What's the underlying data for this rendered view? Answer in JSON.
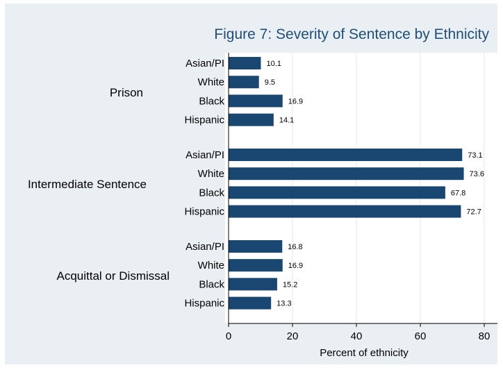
{
  "chart_data": {
    "type": "bar",
    "orientation": "horizontal",
    "title": "Figure 7: Severity of Sentence by Ethnicity",
    "xlabel": "Percent of ethnicity",
    "ylabel": "",
    "xlim": [
      0,
      80
    ],
    "xticks": [
      "0",
      "20",
      "40",
      "60",
      "80"
    ],
    "grid": true,
    "legend": "none",
    "bar_color": "#1a4772",
    "groups": [
      {
        "name": "Prison",
        "categories": [
          "Asian/PI",
          "White",
          "Black",
          "Hispanic"
        ],
        "values": [
          10.1,
          9.5,
          16.9,
          14.1
        ],
        "labels": [
          "10.1",
          "9.5",
          "16.9",
          "14.1"
        ]
      },
      {
        "name": "Intermediate Sentence",
        "categories": [
          "Asian/PI",
          "White",
          "Black",
          "Hispanic"
        ],
        "values": [
          73.1,
          73.6,
          67.8,
          72.7
        ],
        "labels": [
          "73.1",
          "73.6",
          "67.8",
          "72.7"
        ]
      },
      {
        "name": "Acquittal or Dismissal",
        "categories": [
          "Asian/PI",
          "White",
          "Black",
          "Hispanic"
        ],
        "values": [
          16.8,
          16.9,
          15.2,
          13.3
        ],
        "labels": [
          "16.8",
          "16.9",
          "15.2",
          "13.3"
        ]
      }
    ]
  }
}
